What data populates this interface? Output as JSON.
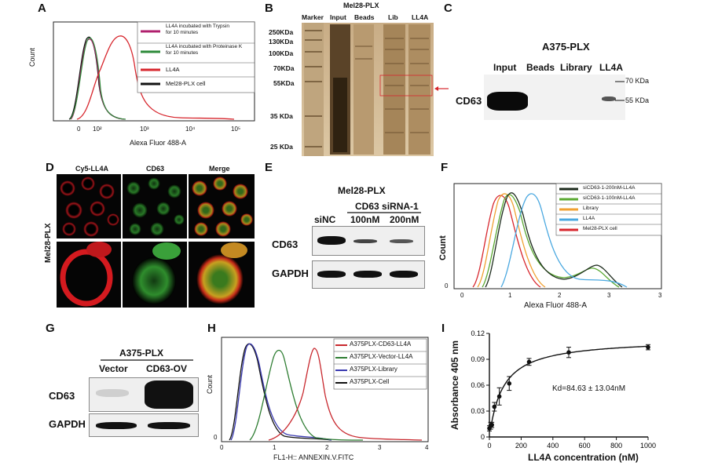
{
  "panel_letters": [
    "A",
    "B",
    "C",
    "D",
    "E",
    "F",
    "G",
    "H",
    "I"
  ],
  "panelA": {
    "ylabel": "Count",
    "xlabel": "Alexa Fluor 488-A",
    "xticks": [
      "0",
      "10²",
      "10³",
      "10⁴",
      "10⁵"
    ],
    "legend": [
      {
        "label": "LL4A incubated with Trypsin\nfor 10 minutes",
        "color": "#b0206e"
      },
      {
        "label": "LL4A incubated with Proteinase K\nfor 10 minutes",
        "color": "#2e8b3a"
      },
      {
        "label": "LL4A",
        "color": "#d7262d"
      },
      {
        "label": "Mel28-PLX cell",
        "color": "#111111"
      }
    ]
  },
  "panelB": {
    "title": "Mel28-PLX",
    "lanes": [
      "Marker",
      "Input",
      "Beads",
      "Lib",
      "LL4A"
    ],
    "markers": [
      "250KDa",
      "130KDa",
      "100KDa",
      "70KDa",
      "55KDa",
      "35 KDa",
      "25 KDa"
    ],
    "arrow_color": "#d7262d"
  },
  "panelC": {
    "title": "A375-PLX",
    "lanes": [
      "Input",
      "Beads",
      "Library",
      "LL4A"
    ],
    "protein": "CD63",
    "markers": [
      "70 KDa",
      "55 KDa"
    ]
  },
  "panelD": {
    "columns": [
      "Cy5-LL4A",
      "CD63",
      "Merge"
    ],
    "row_label": "Mel28-PLX"
  },
  "panelE": {
    "title": "Mel28-PLX",
    "group": "CD63 siRNA-1",
    "lanes": [
      "siNC",
      "100nM",
      "200nM"
    ],
    "proteins": [
      "CD63",
      "GAPDH"
    ]
  },
  "panelF": {
    "ylabel": "Count",
    "xlabel": "Alexa Fluor 488-A",
    "xticks": [
      "0",
      "1",
      "2",
      "3"
    ],
    "legend": [
      {
        "label": "siCD63-1-200nM-LL4A",
        "color": "#1c2a1c"
      },
      {
        "label": "siCD63-1-100nM-LL4A",
        "color": "#5aa832"
      },
      {
        "label": "Library",
        "color": "#f0a030"
      },
      {
        "label": "LL4A",
        "color": "#4aa8e0"
      },
      {
        "label": "Mel28-PLX cell",
        "color": "#d7262d"
      }
    ]
  },
  "panelG": {
    "title": "A375-PLX",
    "lanes": [
      "Vector",
      "CD63-OV"
    ],
    "proteins": [
      "CD63",
      "GAPDH"
    ]
  },
  "panelH": {
    "ylabel": "Count",
    "xlabel": "FL1-H:: ANNEXIN.V.FITC",
    "xticks": [
      "0",
      "1",
      "2",
      "3",
      "4"
    ],
    "legend": [
      {
        "label": "A375PLX-CD63-LL4A",
        "color": "#c8282e"
      },
      {
        "label": "A375PLX-Vector-LL4A",
        "color": "#2e7d32"
      },
      {
        "label": "A375PLX-Library",
        "color": "#3a3ab0"
      },
      {
        "label": "A375PLX-Cell",
        "color": "#111111"
      }
    ]
  },
  "chart_data": {
    "type": "scatter",
    "title": "",
    "xlabel": "LL4A concentration (nM)",
    "ylabel": "Absorbance 405 nm",
    "xlim": [
      0,
      1000
    ],
    "ylim": [
      0,
      0.12
    ],
    "xticks": [
      "0",
      "200",
      "400",
      "600",
      "800",
      "1000"
    ],
    "yticks": [
      "0",
      "0.03",
      "0.06",
      "0.09",
      "0.12"
    ],
    "x": [
      0,
      7.8,
      15.6,
      31.25,
      62.5,
      125,
      250,
      500,
      1000
    ],
    "y": [
      0.01,
      0.013,
      0.014,
      0.035,
      0.047,
      0.062,
      0.087,
      0.098,
      0.104
    ],
    "err": [
      0.003,
      0.004,
      0.003,
      0.005,
      0.01,
      0.008,
      0.004,
      0.006,
      0.003
    ],
    "fit": {
      "model": "one-site binding",
      "bmax": 0.114,
      "kd": 84.63
    },
    "annotation": "Kd=84.63 ± 13.04nM"
  }
}
